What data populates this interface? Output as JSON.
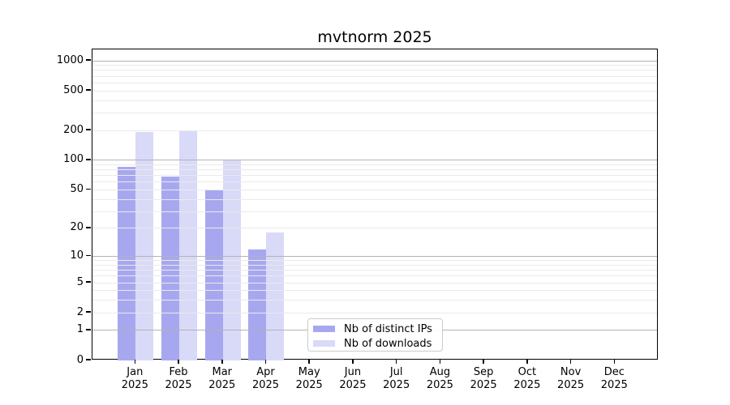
{
  "chart_data": {
    "type": "bar",
    "title": "mvtnorm 2025",
    "year": "2025",
    "months": [
      "Jan",
      "Feb",
      "Mar",
      "Apr",
      "May",
      "Jun",
      "Jul",
      "Aug",
      "Sep",
      "Oct",
      "Nov",
      "Dec"
    ],
    "series": [
      {
        "name": "Nb of distinct IPs",
        "color": "#a7a7f0",
        "values": [
          85,
          68,
          50,
          12,
          0,
          0,
          0,
          0,
          0,
          0,
          0,
          0
        ]
      },
      {
        "name": "Nb of downloads",
        "color": "#d9d9f8",
        "values": [
          192,
          196,
          100,
          18,
          0,
          0,
          0,
          0,
          0,
          0,
          0,
          0
        ]
      }
    ],
    "y_axis": {
      "scale": "log1p",
      "tick_labels": [
        0,
        1,
        2,
        5,
        10,
        20,
        50,
        100,
        200,
        500,
        1000
      ],
      "major_gridlines": [
        1,
        10,
        100,
        1000
      ],
      "ylim": [
        0,
        1000
      ]
    },
    "grid": {
      "major_color": "#b3b3b3",
      "minor_color": "#eaeaea",
      "on": true
    },
    "legend": {
      "position": "bottom-center"
    }
  }
}
